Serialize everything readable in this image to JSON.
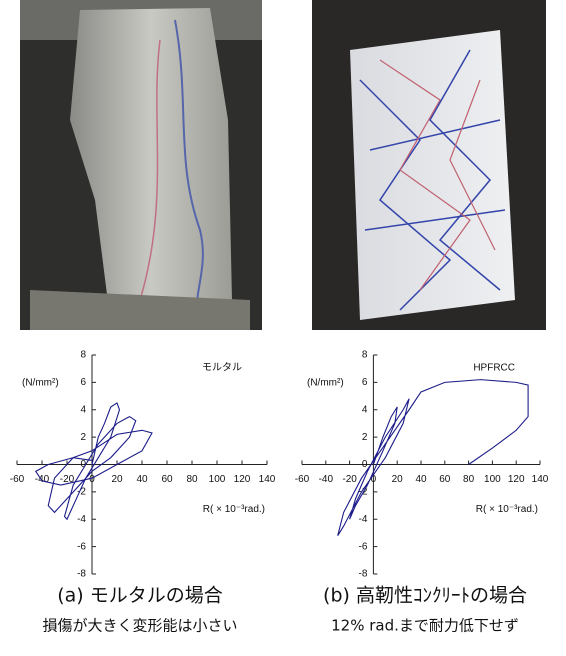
{
  "chart_data": [
    {
      "type": "line",
      "caption": "(a) モルタルの場合",
      "subtitle": "損傷が大きく変形能は小さい",
      "y_label": "(N/mm²)",
      "x_label": "R( × 10⁻³rad.)",
      "xlim": [
        -60,
        140
      ],
      "ylim": [
        -8,
        8
      ],
      "xticks": [
        -60,
        -40,
        -20,
        0,
        20,
        40,
        60,
        80,
        100,
        120,
        140
      ],
      "yticks": [
        -8,
        -6,
        -4,
        -2,
        0,
        2,
        4,
        6,
        8
      ],
      "x": [
        0,
        5,
        10,
        15,
        20,
        22,
        15,
        5,
        -5,
        -15,
        -20,
        -22,
        -15,
        -5,
        5,
        20,
        30,
        35,
        30,
        15,
        0,
        -20,
        -30,
        -35,
        -30,
        -15,
        0,
        20,
        40,
        48,
        40,
        20,
        0,
        -25,
        -40,
        -45,
        -35,
        -15,
        0
      ],
      "series": [
        {
          "name": "モルタル",
          "color": "#1c1c8a",
          "values": [
            0,
            2,
            3,
            4.2,
            4.5,
            4,
            2,
            0.5,
            -1,
            -3,
            -4,
            -3.8,
            -1.5,
            0,
            1.5,
            3,
            3.5,
            3.2,
            2,
            0.5,
            -0.5,
            -2.5,
            -3.5,
            -3,
            -1,
            0.5,
            1,
            2.2,
            2.5,
            2.3,
            1,
            0,
            -1,
            -1.5,
            -1.2,
            -0.5,
            0,
            0.5,
            0.3
          ]
        }
      ]
    },
    {
      "type": "line",
      "caption": "(b) 高靭性ｺﾝｸﾘｰﾄの場合",
      "subtitle": "12% rad.まで耐力低下せず",
      "y_label": "(N/mm²)",
      "x_label": "R( × 10⁻³rad.)",
      "xlim": [
        -60,
        140
      ],
      "ylim": [
        -8,
        8
      ],
      "xticks": [
        -60,
        -40,
        -20,
        0,
        20,
        40,
        60,
        80,
        100,
        120,
        140
      ],
      "yticks": [
        -8,
        -6,
        -4,
        -2,
        0,
        2,
        4,
        6,
        8
      ],
      "x": [
        0,
        8,
        15,
        20,
        18,
        8,
        -5,
        -15,
        -20,
        -15,
        -5,
        10,
        25,
        30,
        25,
        10,
        -10,
        -25,
        -30,
        -25,
        -10,
        10,
        30,
        40,
        60,
        90,
        120,
        130,
        130,
        120,
        100,
        80
      ],
      "series": [
        {
          "name": "HPFRCC",
          "color": "#1c1c8a",
          "values": [
            0,
            2,
            3.5,
            4.2,
            3,
            1,
            -1.5,
            -3,
            -4,
            -2.5,
            -0.5,
            2,
            4,
            4.8,
            3,
            0.5,
            -2,
            -4.5,
            -5.2,
            -3.5,
            -1,
            1.5,
            4,
            5.3,
            6,
            6.2,
            6,
            5.8,
            3.5,
            2.5,
            1.2,
            0
          ]
        }
      ]
    }
  ]
}
